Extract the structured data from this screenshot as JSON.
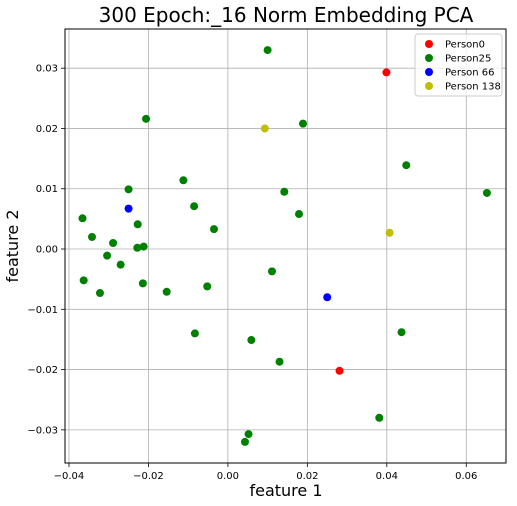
{
  "chart_data": {
    "type": "scatter",
    "title": "300 Epoch:_16 Norm Embedding PCA",
    "xlabel": "feature 1",
    "ylabel": "feature 2",
    "xlim": [
      -0.041,
      0.07
    ],
    "ylim": [
      -0.0355,
      0.0365
    ],
    "xticks": [
      -0.04,
      -0.02,
      0.0,
      0.02,
      0.04,
      0.06
    ],
    "xtick_labels": [
      "−0.04",
      "−0.02",
      "0.00",
      "0.02",
      "0.04",
      "0.06"
    ],
    "yticks": [
      -0.03,
      -0.02,
      -0.01,
      0.0,
      0.01,
      0.02,
      0.03
    ],
    "ytick_labels": [
      "−0.03",
      "−0.02",
      "−0.01",
      "0.00",
      "0.01",
      "0.02",
      "0.03"
    ],
    "grid": true,
    "legend_position": "top-right",
    "series": [
      {
        "name": "Person0",
        "color": "#ff0000",
        "points": [
          [
            0.0399,
            0.0293
          ],
          [
            0.0281,
            -0.0202
          ]
        ]
      },
      {
        "name": "Person25",
        "color": "#008000",
        "points": [
          [
            0.01,
            0.033
          ],
          [
            -0.0206,
            0.0216
          ],
          [
            0.0189,
            0.0208
          ],
          [
            0.0449,
            0.0139
          ],
          [
            -0.0112,
            0.0114
          ],
          [
            -0.025,
            0.0099
          ],
          [
            0.0142,
            0.0095
          ],
          [
            0.0652,
            0.0093
          ],
          [
            -0.0085,
            0.0071
          ],
          [
            0.0179,
            0.0058
          ],
          [
            -0.0366,
            0.0051
          ],
          [
            -0.0227,
            0.0041
          ],
          [
            -0.0035,
            0.0033
          ],
          [
            -0.0342,
            0.002
          ],
          [
            -0.0289,
            0.001
          ],
          [
            -0.0212,
            0.0004
          ],
          [
            -0.0228,
            0.0002
          ],
          [
            -0.0304,
            -0.0011
          ],
          [
            -0.027,
            -0.0026
          ],
          [
            0.0111,
            -0.0037
          ],
          [
            -0.0363,
            -0.0052
          ],
          [
            -0.0214,
            -0.0057
          ],
          [
            -0.0052,
            -0.0062
          ],
          [
            -0.0154,
            -0.0071
          ],
          [
            -0.0322,
            -0.0073
          ],
          [
            0.0437,
            -0.0138
          ],
          [
            -0.0083,
            -0.014
          ],
          [
            0.0059,
            -0.0151
          ],
          [
            0.013,
            -0.0187
          ],
          [
            0.0381,
            -0.028
          ],
          [
            0.0052,
            -0.0307
          ],
          [
            0.0043,
            -0.032
          ]
        ]
      },
      {
        "name": "Person 66",
        "color": "#0000ff",
        "points": [
          [
            -0.025,
            0.0067
          ],
          [
            0.025,
            -0.008
          ]
        ]
      },
      {
        "name": "Person 138",
        "color": "#bfbf00",
        "points": [
          [
            0.0093,
            0.02
          ],
          [
            0.0407,
            0.0027
          ]
        ]
      }
    ]
  }
}
